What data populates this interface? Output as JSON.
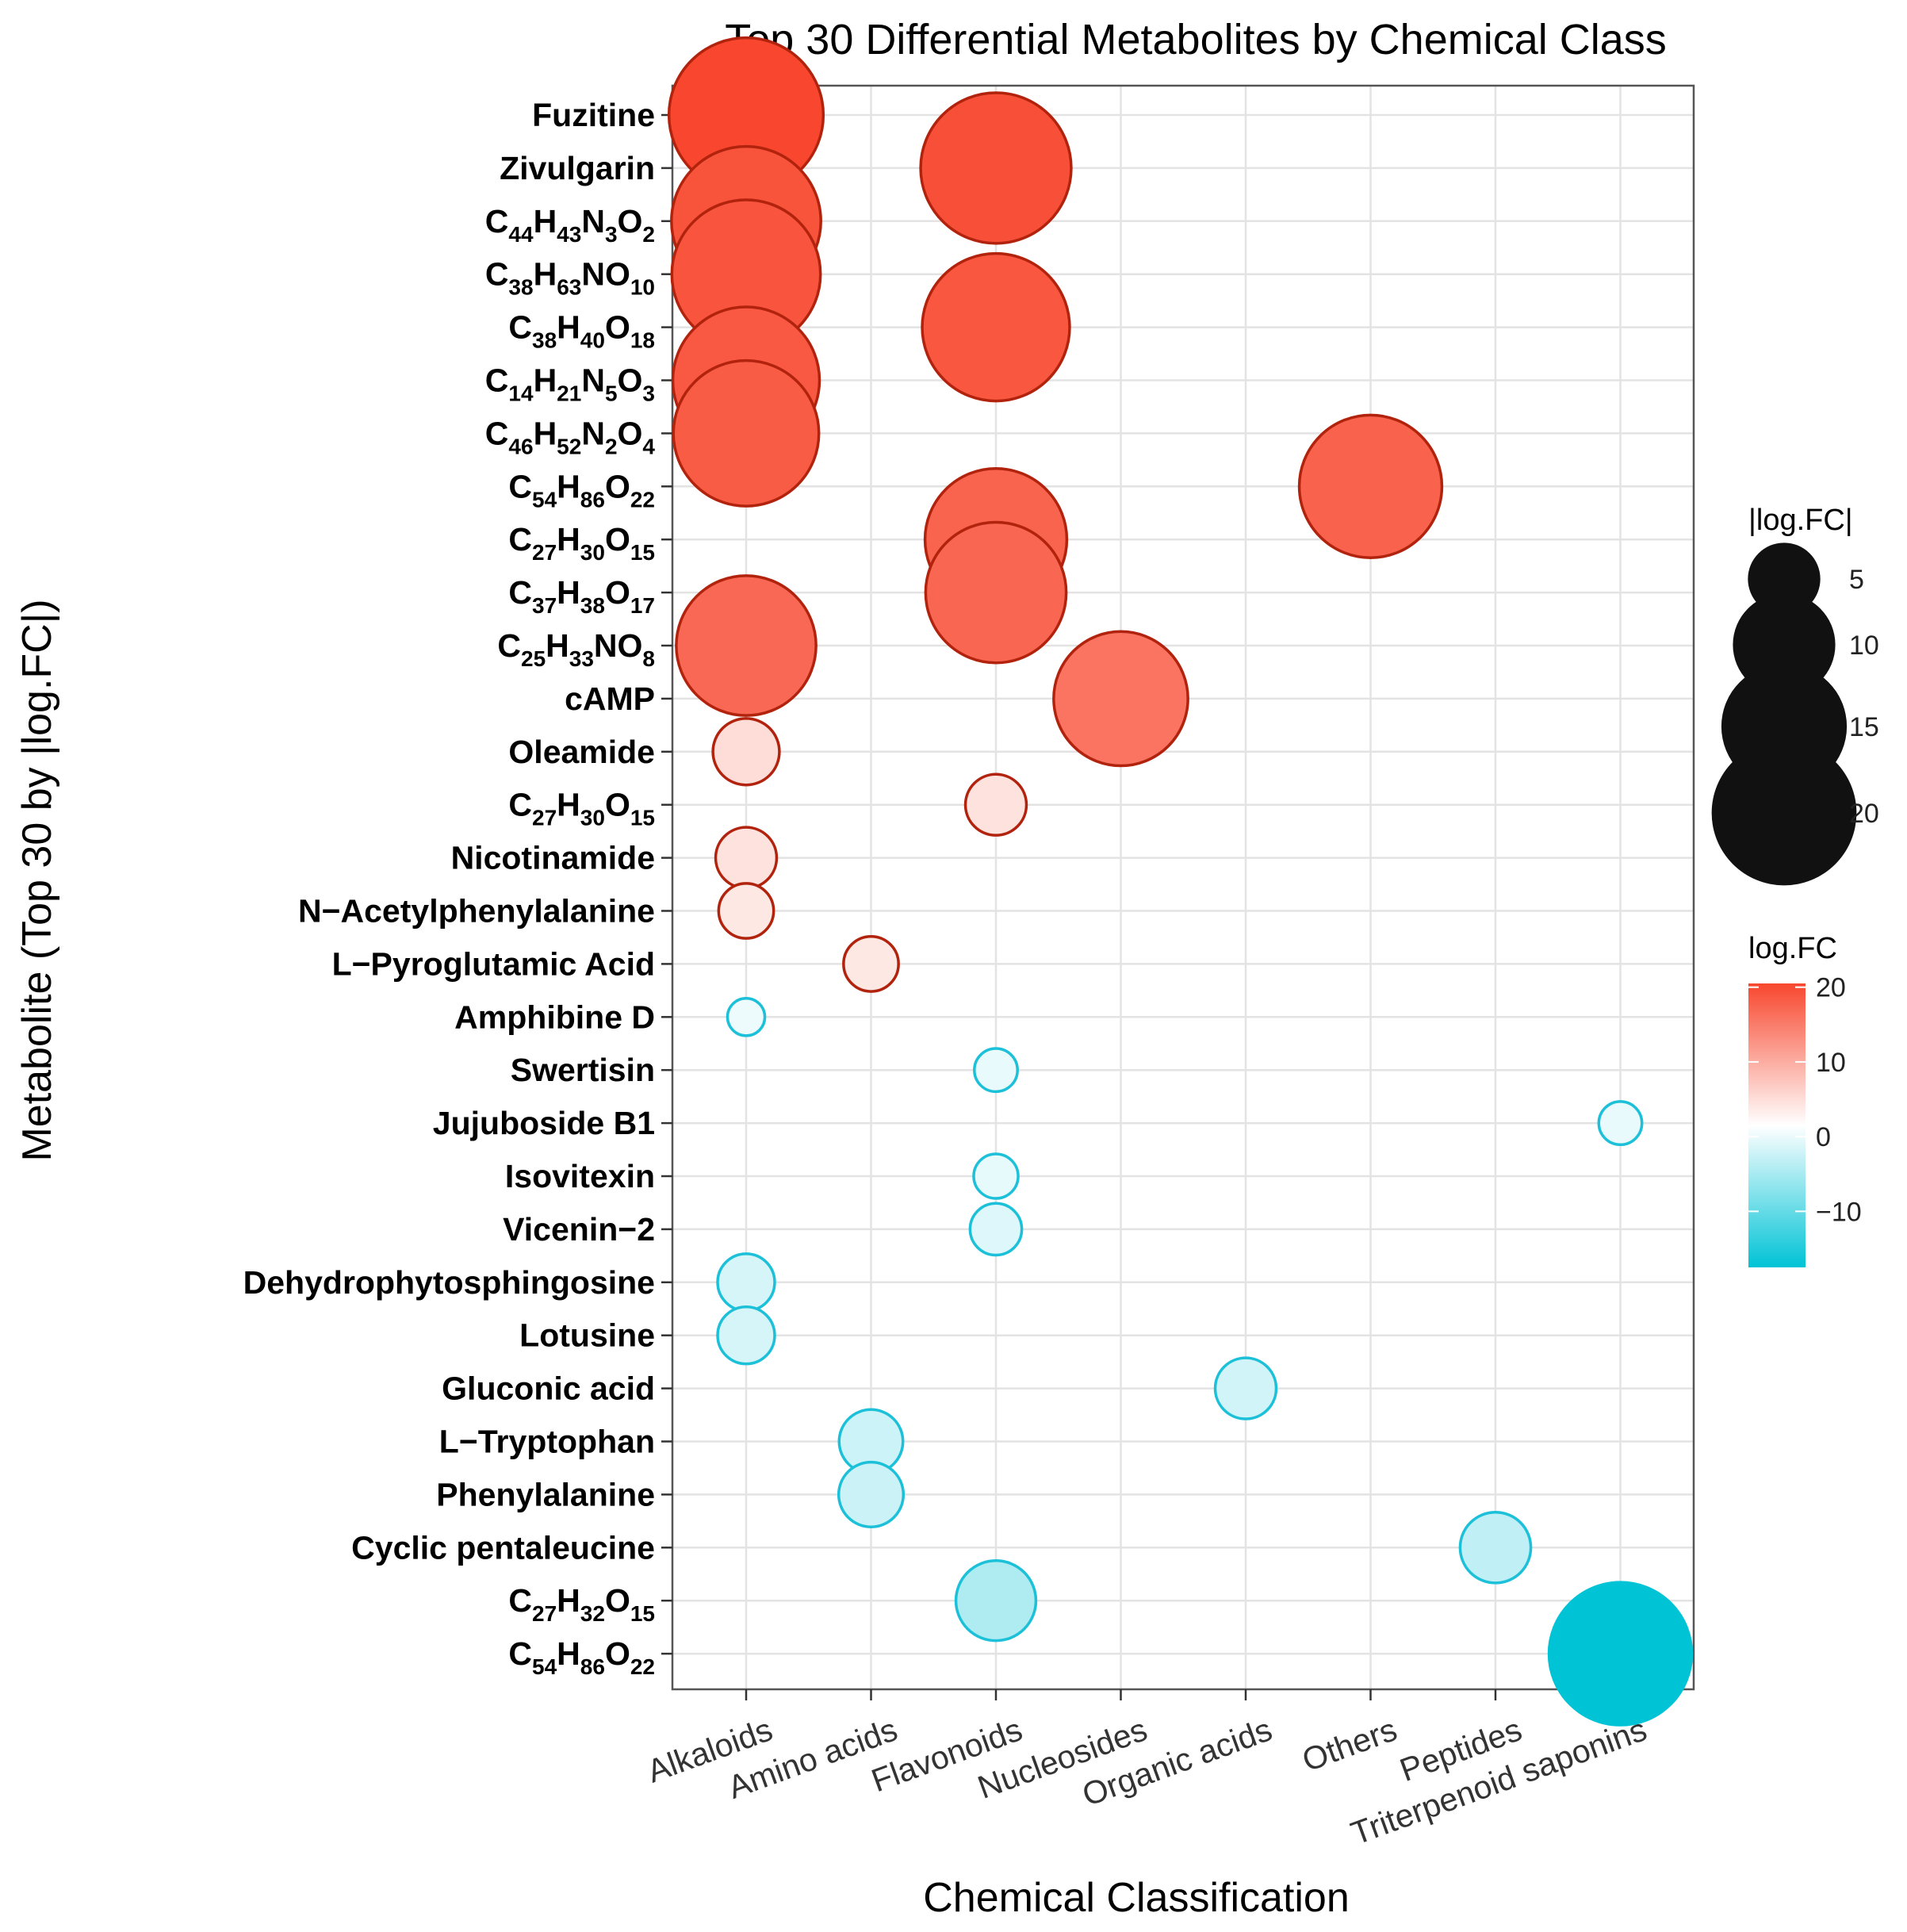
{
  "chart_data": {
    "type": "scatter",
    "title": "Top 30 Differential Metabolites by Chemical Class",
    "xlabel": "Chemical Classification",
    "ylabel": "Metabolite (Top 30 by |log.FC|)",
    "categories": [
      "Alkaloids",
      "Amino acids",
      "Flavonoids",
      "Nucleosides",
      "Organic acids",
      "Others",
      "Peptides",
      "Triterpenoid saponins"
    ],
    "points": [
      {
        "name": "Fuzitine",
        "parts": [
          [
            "Fuzitine",
            ""
          ]
        ],
        "class": "Alkaloids",
        "logFC": 20.5
      },
      {
        "name": "Zivulgarin",
        "parts": [
          [
            "Zivulgarin",
            ""
          ]
        ],
        "class": "Flavonoids",
        "logFC": 19.5
      },
      {
        "name": "C44H43N3O2",
        "parts": [
          [
            "C",
            "44"
          ],
          [
            "H",
            "43"
          ],
          [
            "N",
            "3"
          ],
          [
            "O",
            "2"
          ]
        ],
        "class": "Alkaloids",
        "logFC": 19.2
      },
      {
        "name": "C38H63NO10",
        "parts": [
          [
            "C",
            "38"
          ],
          [
            "H",
            "63"
          ],
          [
            "NO",
            "10"
          ]
        ],
        "class": "Alkaloids",
        "logFC": 19.0
      },
      {
        "name": "C38H40O18",
        "parts": [
          [
            "C",
            "38"
          ],
          [
            "H",
            "40"
          ],
          [
            "O",
            "18"
          ]
        ],
        "class": "Flavonoids",
        "logFC": 18.7
      },
      {
        "name": "C14H21N5O3",
        "parts": [
          [
            "C",
            "14"
          ],
          [
            "H",
            "21"
          ],
          [
            "N",
            "5"
          ],
          [
            "O",
            "3"
          ]
        ],
        "class": "Alkaloids",
        "logFC": 18.5
      },
      {
        "name": "C46H52N2O4",
        "parts": [
          [
            "C",
            "46"
          ],
          [
            "H",
            "52"
          ],
          [
            "N",
            "2"
          ],
          [
            "O",
            "4"
          ]
        ],
        "class": "Alkaloids",
        "logFC": 18.2
      },
      {
        "name": "C54H86O22",
        "parts": [
          [
            "C",
            "54"
          ],
          [
            "H",
            "86"
          ],
          [
            "O",
            "22"
          ]
        ],
        "class": "Others",
        "logFC": 17.5
      },
      {
        "name": "C27H30O15",
        "parts": [
          [
            "C",
            "27"
          ],
          [
            "H",
            "30"
          ],
          [
            "O",
            "15"
          ]
        ],
        "class": "Flavonoids",
        "logFC": 17.3
      },
      {
        "name": "C37H38O17",
        "parts": [
          [
            "C",
            "37"
          ],
          [
            "H",
            "38"
          ],
          [
            "O",
            "17"
          ]
        ],
        "class": "Flavonoids",
        "logFC": 17.0
      },
      {
        "name": "C25H33NO8",
        "parts": [
          [
            "C",
            "25"
          ],
          [
            "H",
            "33"
          ],
          [
            "NO",
            "8"
          ]
        ],
        "class": "Alkaloids",
        "logFC": 16.8
      },
      {
        "name": "cAMP",
        "parts": [
          [
            "cAMP",
            ""
          ]
        ],
        "class": "Nucleosides",
        "logFC": 15.5
      },
      {
        "name": "Oleamide",
        "parts": [
          [
            "Oleamide",
            ""
          ]
        ],
        "class": "Alkaloids",
        "logFC": 3.8
      },
      {
        "name": "C27H30O15",
        "parts": [
          [
            "C",
            "27"
          ],
          [
            "H",
            "30"
          ],
          [
            "O",
            "15"
          ]
        ],
        "class": "Flavonoids",
        "logFC": 3.2
      },
      {
        "name": "Nicotinamide",
        "parts": [
          [
            "Nicotinamide",
            ""
          ]
        ],
        "class": "Alkaloids",
        "logFC": 3.2
      },
      {
        "name": "N−Acetylphenylalanine",
        "parts": [
          [
            "N−Acetylphenylalanine",
            ""
          ]
        ],
        "class": "Alkaloids",
        "logFC": 2.6
      },
      {
        "name": "L−Pyroglutamic Acid",
        "parts": [
          [
            "L−Pyroglutamic Acid",
            ""
          ]
        ],
        "class": "Amino acids",
        "logFC": 2.6
      },
      {
        "name": "Amphibine D",
        "parts": [
          [
            "Amphibine D",
            ""
          ]
        ],
        "class": "Alkaloids",
        "logFC": -1.2
      },
      {
        "name": "Swertisin",
        "parts": [
          [
            "Swertisin",
            ""
          ]
        ],
        "class": "Flavonoids",
        "logFC": -1.6
      },
      {
        "name": "Jujuboside B1",
        "parts": [
          [
            "Jujuboside B1",
            ""
          ]
        ],
        "class": "Triterpenoid saponins",
        "logFC": -1.6
      },
      {
        "name": "Isovitexin",
        "parts": [
          [
            "Isovitexin",
            ""
          ]
        ],
        "class": "Flavonoids",
        "logFC": -1.7
      },
      {
        "name": "Vicenin−2",
        "parts": [
          [
            "Vicenin−2",
            ""
          ]
        ],
        "class": "Flavonoids",
        "logFC": -2.3
      },
      {
        "name": "Dehydrophytosphingosine",
        "parts": [
          [
            "Dehydrophytosphingosine",
            ""
          ]
        ],
        "class": "Alkaloids",
        "logFC": -2.8
      },
      {
        "name": "Lotusine",
        "parts": [
          [
            "Lotusine",
            ""
          ]
        ],
        "class": "Alkaloids",
        "logFC": -2.8
      },
      {
        "name": "Gluconic acid",
        "parts": [
          [
            "Gluconic acid",
            ""
          ]
        ],
        "class": "Organic acids",
        "logFC": -3.2
      },
      {
        "name": "L−Tryptophan",
        "parts": [
          [
            "L−Tryptophan",
            ""
          ]
        ],
        "class": "Amino acids",
        "logFC": -3.5
      },
      {
        "name": "Phenylalanine",
        "parts": [
          [
            "Phenylalanine",
            ""
          ]
        ],
        "class": "Amino acids",
        "logFC": -3.6
      },
      {
        "name": "Cyclic pentaleucine",
        "parts": [
          [
            "Cyclic pentaleucine",
            ""
          ]
        ],
        "class": "Peptides",
        "logFC": -4.3
      },
      {
        "name": "C27H32O15",
        "parts": [
          [
            "C",
            "27"
          ],
          [
            "H",
            "32"
          ],
          [
            "O",
            "15"
          ]
        ],
        "class": "Flavonoids",
        "logFC": -5.5
      },
      {
        "name": "C54H86O22",
        "parts": [
          [
            "C",
            "54"
          ],
          [
            "H",
            "86"
          ],
          [
            "O",
            "22"
          ]
        ],
        "class": "Triterpenoid saponins",
        "logFC": -17.5
      }
    ],
    "size_legend": {
      "title": "|log.FC|",
      "breaks": [
        5,
        10,
        15,
        20
      ],
      "labels": [
        "5",
        "10",
        "15",
        "20"
      ]
    },
    "color_legend": {
      "title": "log.FC",
      "breaks": [
        20,
        10,
        0,
        -10
      ],
      "labels": [
        "20",
        "10",
        "0",
        "−10"
      ],
      "limits": [
        -17.5,
        20.5
      ]
    },
    "colors": {
      "high": "#F8472E",
      "mid": "#FFFFFF",
      "low": "#00C3D6",
      "outline_pos": "#B2230E",
      "outline_neg": "#1CC0D8",
      "grid": "#E3E3E3",
      "panel_border": "#555555"
    },
    "grid": true,
    "legend_position": "right"
  }
}
